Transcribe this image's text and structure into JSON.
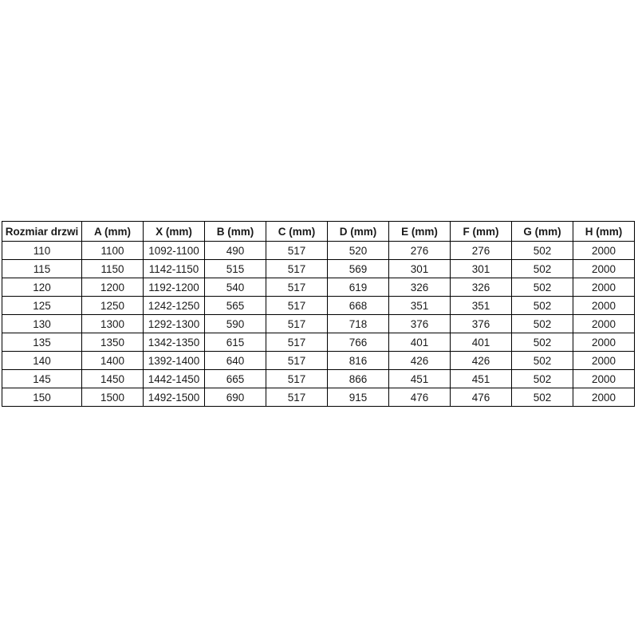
{
  "theme": {
    "bg": "#ffffff",
    "border": "#000000",
    "text": "#1a1a1a"
  },
  "table": {
    "columns": [
      "Rozmiar drzwi",
      "A (mm)",
      "X (mm)",
      "B (mm)",
      "C (mm)",
      "D (mm)",
      "E (mm)",
      "F (mm)",
      "G (mm)",
      "H (mm)"
    ],
    "rows": [
      [
        "110",
        "1100",
        "1092-1100",
        "490",
        "517",
        "520",
        "276",
        "276",
        "502",
        "2000"
      ],
      [
        "115",
        "1150",
        "1142-1150",
        "515",
        "517",
        "569",
        "301",
        "301",
        "502",
        "2000"
      ],
      [
        "120",
        "1200",
        "1192-1200",
        "540",
        "517",
        "619",
        "326",
        "326",
        "502",
        "2000"
      ],
      [
        "125",
        "1250",
        "1242-1250",
        "565",
        "517",
        "668",
        "351",
        "351",
        "502",
        "2000"
      ],
      [
        "130",
        "1300",
        "1292-1300",
        "590",
        "517",
        "718",
        "376",
        "376",
        "502",
        "2000"
      ],
      [
        "135",
        "1350",
        "1342-1350",
        "615",
        "517",
        "766",
        "401",
        "401",
        "502",
        "2000"
      ],
      [
        "140",
        "1400",
        "1392-1400",
        "640",
        "517",
        "816",
        "426",
        "426",
        "502",
        "2000"
      ],
      [
        "145",
        "1450",
        "1442-1450",
        "665",
        "517",
        "866",
        "451",
        "451",
        "502",
        "2000"
      ],
      [
        "150",
        "1500",
        "1492-1500",
        "690",
        "517",
        "915",
        "476",
        "476",
        "502",
        "2000"
      ]
    ]
  }
}
